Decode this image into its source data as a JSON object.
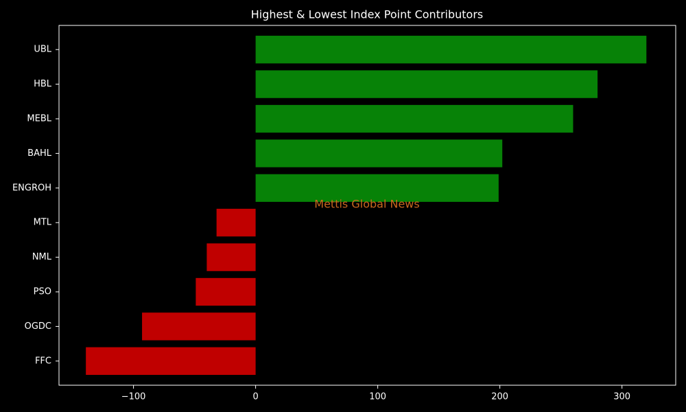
{
  "chart_data": {
    "type": "barh",
    "title": "Highest & Lowest Index Point Contributors",
    "watermark": "Mettis Global News",
    "watermark_color": "#c8681e",
    "categories": [
      "UBL",
      "HBL",
      "MEBL",
      "BAHL",
      "ENGROH",
      "MTL",
      "NML",
      "PSO",
      "OGDC",
      "FFC"
    ],
    "values": [
      320,
      280,
      260,
      202,
      199,
      -32,
      -40,
      -49,
      -93,
      -139
    ],
    "colors": [
      "#078207",
      "#078207",
      "#078207",
      "#078207",
      "#078207",
      "#c00000",
      "#c00000",
      "#c00000",
      "#c00000",
      "#c00000"
    ],
    "xlim": [
      -161,
      344
    ],
    "xticks": [
      {
        "value": -100,
        "label": "−100"
      },
      0,
      100,
      200,
      300
    ],
    "grid": false
  }
}
